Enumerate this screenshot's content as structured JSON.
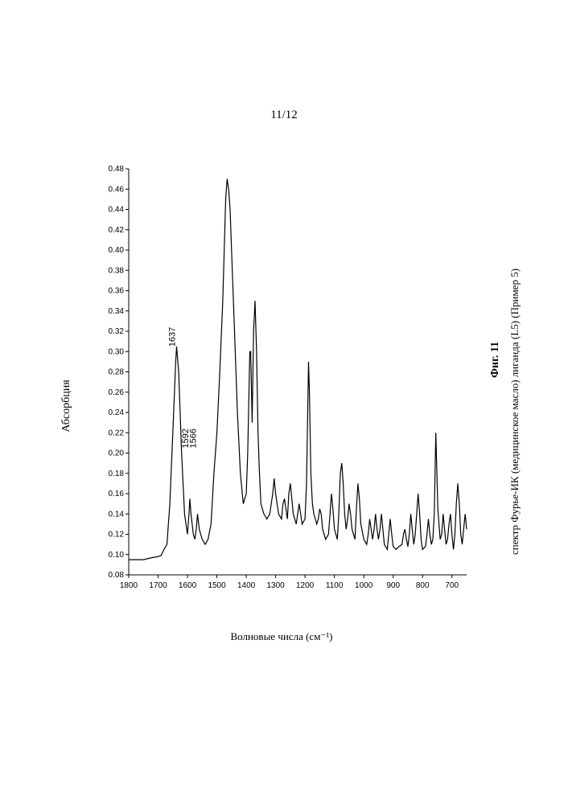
{
  "page_number": "11/12",
  "figure_number": "Фиг. 11",
  "caption": "спектр Фурье-ИК (медицинское масло) лиганда (L5) (Пример 5)",
  "y_axis_label": "Абсорбция",
  "x_axis_label": "Волновые числа (см⁻¹)",
  "peak_labels": [
    {
      "text": "1637",
      "wn": 1637,
      "abs": 0.3
    },
    {
      "text": "1592",
      "wn": 1592,
      "abs": 0.2
    },
    {
      "text": "1566",
      "wn": 1566,
      "abs": 0.2
    }
  ],
  "chart": {
    "type": "line",
    "line_color": "#000000",
    "line_width": 1.2,
    "background_color": "#ffffff",
    "x_domain": [
      1800,
      650
    ],
    "y_domain": [
      0.08,
      0.48
    ],
    "x_ticks": [
      1800,
      1700,
      1600,
      1500,
      1400,
      1300,
      1200,
      1100,
      1000,
      900,
      800,
      700
    ],
    "y_ticks": [
      0.08,
      0.1,
      0.12,
      0.14,
      0.16,
      0.18,
      0.2,
      0.22,
      0.24,
      0.26,
      0.28,
      0.3,
      0.32,
      0.34,
      0.36,
      0.38,
      0.4,
      0.42,
      0.44,
      0.46,
      0.48
    ],
    "tick_fontsize": 10,
    "points": [
      [
        1800,
        0.095
      ],
      [
        1750,
        0.095
      ],
      [
        1720,
        0.097
      ],
      [
        1700,
        0.098
      ],
      [
        1690,
        0.099
      ],
      [
        1680,
        0.105
      ],
      [
        1670,
        0.11
      ],
      [
        1660,
        0.15
      ],
      [
        1650,
        0.22
      ],
      [
        1640,
        0.29
      ],
      [
        1637,
        0.305
      ],
      [
        1630,
        0.28
      ],
      [
        1620,
        0.2
      ],
      [
        1610,
        0.14
      ],
      [
        1600,
        0.12
      ],
      [
        1595,
        0.14
      ],
      [
        1592,
        0.155
      ],
      [
        1588,
        0.14
      ],
      [
        1580,
        0.12
      ],
      [
        1575,
        0.115
      ],
      [
        1570,
        0.125
      ],
      [
        1566,
        0.14
      ],
      [
        1560,
        0.125
      ],
      [
        1550,
        0.115
      ],
      [
        1540,
        0.11
      ],
      [
        1530,
        0.115
      ],
      [
        1520,
        0.13
      ],
      [
        1510,
        0.18
      ],
      [
        1500,
        0.22
      ],
      [
        1490,
        0.28
      ],
      [
        1480,
        0.35
      ],
      [
        1475,
        0.4
      ],
      [
        1470,
        0.45
      ],
      [
        1465,
        0.47
      ],
      [
        1460,
        0.46
      ],
      [
        1455,
        0.44
      ],
      [
        1450,
        0.4
      ],
      [
        1440,
        0.32
      ],
      [
        1430,
        0.24
      ],
      [
        1420,
        0.18
      ],
      [
        1410,
        0.15
      ],
      [
        1400,
        0.16
      ],
      [
        1395,
        0.2
      ],
      [
        1388,
        0.3
      ],
      [
        1385,
        0.3
      ],
      [
        1380,
        0.23
      ],
      [
        1375,
        0.32
      ],
      [
        1370,
        0.35
      ],
      [
        1365,
        0.3
      ],
      [
        1360,
        0.22
      ],
      [
        1355,
        0.18
      ],
      [
        1350,
        0.15
      ],
      [
        1340,
        0.14
      ],
      [
        1330,
        0.135
      ],
      [
        1320,
        0.14
      ],
      [
        1310,
        0.16
      ],
      [
        1305,
        0.175
      ],
      [
        1300,
        0.16
      ],
      [
        1295,
        0.15
      ],
      [
        1290,
        0.14
      ],
      [
        1280,
        0.135
      ],
      [
        1275,
        0.15
      ],
      [
        1270,
        0.155
      ],
      [
        1265,
        0.145
      ],
      [
        1260,
        0.135
      ],
      [
        1255,
        0.16
      ],
      [
        1250,
        0.17
      ],
      [
        1245,
        0.155
      ],
      [
        1240,
        0.14
      ],
      [
        1230,
        0.13
      ],
      [
        1225,
        0.14
      ],
      [
        1220,
        0.15
      ],
      [
        1215,
        0.14
      ],
      [
        1210,
        0.13
      ],
      [
        1200,
        0.135
      ],
      [
        1195,
        0.17
      ],
      [
        1188,
        0.29
      ],
      [
        1185,
        0.26
      ],
      [
        1180,
        0.18
      ],
      [
        1175,
        0.15
      ],
      [
        1170,
        0.14
      ],
      [
        1160,
        0.13
      ],
      [
        1155,
        0.135
      ],
      [
        1150,
        0.145
      ],
      [
        1145,
        0.14
      ],
      [
        1140,
        0.125
      ],
      [
        1130,
        0.115
      ],
      [
        1120,
        0.12
      ],
      [
        1115,
        0.14
      ],
      [
        1110,
        0.16
      ],
      [
        1105,
        0.145
      ],
      [
        1100,
        0.125
      ],
      [
        1090,
        0.115
      ],
      [
        1085,
        0.14
      ],
      [
        1080,
        0.18
      ],
      [
        1075,
        0.19
      ],
      [
        1070,
        0.17
      ],
      [
        1065,
        0.14
      ],
      [
        1060,
        0.125
      ],
      [
        1055,
        0.135
      ],
      [
        1050,
        0.15
      ],
      [
        1045,
        0.14
      ],
      [
        1040,
        0.125
      ],
      [
        1030,
        0.115
      ],
      [
        1025,
        0.145
      ],
      [
        1020,
        0.17
      ],
      [
        1015,
        0.155
      ],
      [
        1010,
        0.13
      ],
      [
        1000,
        0.115
      ],
      [
        990,
        0.11
      ],
      [
        985,
        0.12
      ],
      [
        980,
        0.135
      ],
      [
        975,
        0.125
      ],
      [
        970,
        0.115
      ],
      [
        965,
        0.125
      ],
      [
        960,
        0.14
      ],
      [
        955,
        0.125
      ],
      [
        950,
        0.115
      ],
      [
        945,
        0.125
      ],
      [
        940,
        0.14
      ],
      [
        935,
        0.125
      ],
      [
        930,
        0.11
      ],
      [
        920,
        0.105
      ],
      [
        915,
        0.12
      ],
      [
        910,
        0.135
      ],
      [
        905,
        0.12
      ],
      [
        900,
        0.108
      ],
      [
        890,
        0.105
      ],
      [
        880,
        0.108
      ],
      [
        870,
        0.11
      ],
      [
        865,
        0.12
      ],
      [
        860,
        0.125
      ],
      [
        855,
        0.115
      ],
      [
        850,
        0.108
      ],
      [
        845,
        0.12
      ],
      [
        840,
        0.14
      ],
      [
        835,
        0.125
      ],
      [
        830,
        0.11
      ],
      [
        825,
        0.12
      ],
      [
        820,
        0.14
      ],
      [
        815,
        0.16
      ],
      [
        810,
        0.14
      ],
      [
        805,
        0.115
      ],
      [
        800,
        0.105
      ],
      [
        790,
        0.108
      ],
      [
        785,
        0.12
      ],
      [
        780,
        0.135
      ],
      [
        775,
        0.12
      ],
      [
        770,
        0.11
      ],
      [
        765,
        0.115
      ],
      [
        760,
        0.14
      ],
      [
        755,
        0.22
      ],
      [
        752,
        0.19
      ],
      [
        748,
        0.145
      ],
      [
        740,
        0.115
      ],
      [
        735,
        0.12
      ],
      [
        730,
        0.14
      ],
      [
        725,
        0.125
      ],
      [
        720,
        0.11
      ],
      [
        715,
        0.115
      ],
      [
        710,
        0.13
      ],
      [
        705,
        0.14
      ],
      [
        700,
        0.12
      ],
      [
        695,
        0.105
      ],
      [
        690,
        0.12
      ],
      [
        685,
        0.15
      ],
      [
        680,
        0.17
      ],
      [
        675,
        0.15
      ],
      [
        670,
        0.12
      ],
      [
        665,
        0.11
      ],
      [
        660,
        0.125
      ],
      [
        655,
        0.14
      ],
      [
        650,
        0.125
      ]
    ]
  }
}
